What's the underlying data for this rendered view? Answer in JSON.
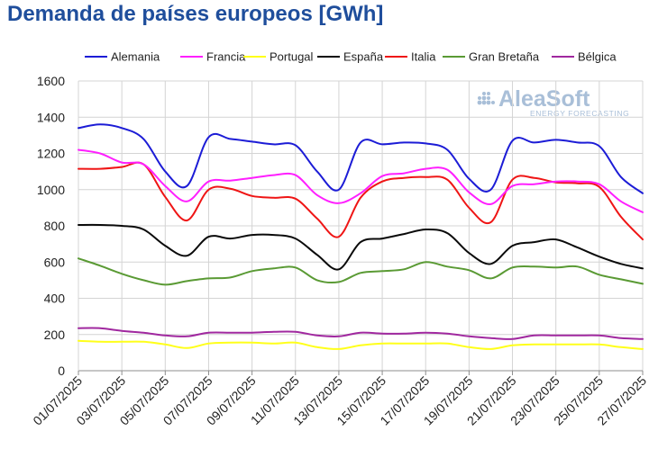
{
  "chart_data": {
    "type": "line",
    "title": "Demanda de países europeos [GWh]",
    "xlabel": "",
    "ylabel": "",
    "ylim": [
      0,
      1600
    ],
    "yticks": [
      0,
      200,
      400,
      600,
      800,
      1000,
      1200,
      1400,
      1600
    ],
    "grid": true,
    "legend_position": "top",
    "watermark": {
      "main": "AleaSoft",
      "sub": "ENERGY FORECASTING"
    },
    "x": [
      "01/07/2025",
      "02/07/2025",
      "03/07/2025",
      "04/07/2025",
      "05/07/2025",
      "06/07/2025",
      "07/07/2025",
      "08/07/2025",
      "09/07/2025",
      "10/07/2025",
      "11/07/2025",
      "12/07/2025",
      "13/07/2025",
      "14/07/2025",
      "15/07/2025",
      "16/07/2025",
      "17/07/2025",
      "18/07/2025",
      "19/07/2025",
      "20/07/2025",
      "21/07/2025",
      "22/07/2025",
      "23/07/2025",
      "24/07/2025",
      "25/07/2025",
      "26/07/2025",
      "27/07/2025"
    ],
    "xtick_labels": [
      "01/07/2025",
      "03/07/2025",
      "05/07/2025",
      "07/07/2025",
      "09/07/2025",
      "11/07/2025",
      "13/07/2025",
      "15/07/2025",
      "17/07/2025",
      "19/07/2025",
      "21/07/2025",
      "23/07/2025",
      "25/07/2025",
      "27/07/2025"
    ],
    "series": [
      {
        "name": "Alemania",
        "color": "#1c1cd6",
        "values": [
          1340,
          1360,
          1340,
          1280,
          1100,
          1020,
          1290,
          1280,
          1265,
          1250,
          1245,
          1100,
          1000,
          1260,
          1250,
          1260,
          1255,
          1220,
          1060,
          1000,
          1270,
          1260,
          1275,
          1260,
          1240,
          1070,
          980
        ]
      },
      {
        "name": "Francia",
        "color": "#ff1fff",
        "values": [
          1220,
          1200,
          1150,
          1140,
          1020,
          935,
          1045,
          1050,
          1065,
          1080,
          1080,
          970,
          925,
          980,
          1075,
          1090,
          1115,
          1110,
          985,
          920,
          1020,
          1030,
          1045,
          1045,
          1030,
          935,
          875
        ]
      },
      {
        "name": "Portugal",
        "color": "#ffff1a",
        "values": [
          165,
          160,
          160,
          160,
          145,
          125,
          150,
          155,
          155,
          150,
          155,
          130,
          120,
          140,
          150,
          150,
          150,
          150,
          130,
          120,
          140,
          145,
          145,
          145,
          145,
          130,
          120
        ]
      },
      {
        "name": "España",
        "color": "#0a0a0a",
        "values": [
          805,
          805,
          800,
          780,
          690,
          635,
          740,
          730,
          750,
          750,
          730,
          640,
          560,
          710,
          730,
          755,
          780,
          760,
          650,
          590,
          690,
          710,
          725,
          680,
          630,
          590,
          565
        ]
      },
      {
        "name": "Italia",
        "color": "#ef1515",
        "values": [
          1115,
          1115,
          1125,
          1140,
          960,
          830,
          1000,
          1005,
          965,
          955,
          950,
          840,
          740,
          955,
          1045,
          1065,
          1070,
          1055,
          900,
          820,
          1055,
          1065,
          1040,
          1035,
          1015,
          850,
          725
        ]
      },
      {
        "name": "Gran Bretaña",
        "color": "#5a9a34",
        "values": [
          620,
          580,
          535,
          500,
          475,
          495,
          510,
          515,
          550,
          565,
          570,
          500,
          490,
          540,
          550,
          560,
          600,
          575,
          555,
          510,
          570,
          575,
          570,
          575,
          530,
          505,
          480
        ]
      },
      {
        "name": "Bélgica",
        "color": "#a0289f",
        "values": [
          235,
          235,
          220,
          210,
          195,
          190,
          210,
          210,
          210,
          215,
          215,
          195,
          190,
          210,
          205,
          205,
          210,
          205,
          190,
          180,
          175,
          195,
          195,
          195,
          195,
          180,
          175
        ]
      }
    ]
  }
}
